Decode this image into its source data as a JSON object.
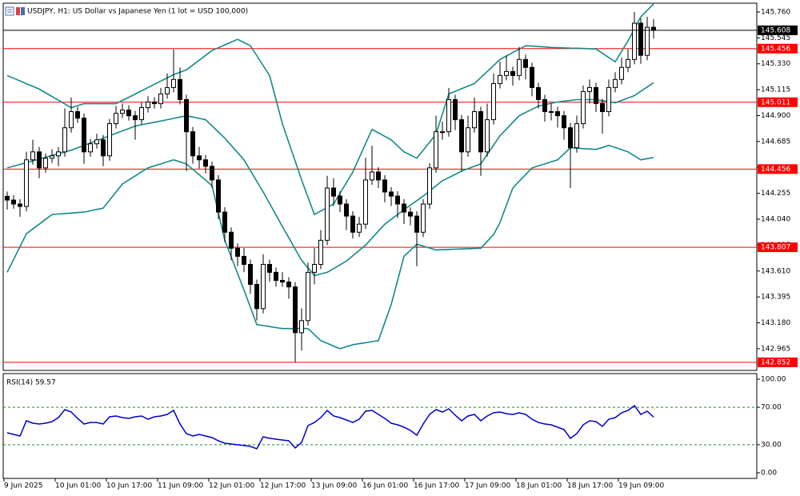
{
  "chart_data": [
    {
      "type": "candlestick",
      "title": "USDJPY, H1:  US Dollar vs Japanese Yen (1 lot = USD 100,000)",
      "categories": [
        "9 Jun 2025",
        null,
        null,
        null,
        null,
        null,
        null,
        null,
        "10 Jun 01:00",
        null,
        null,
        null,
        null,
        null,
        null,
        null,
        "10 Jun 17:00",
        null,
        null,
        null,
        null,
        null,
        null,
        null,
        "11 Jun 09:00",
        null,
        null,
        null,
        null,
        null,
        null,
        null,
        "12 Jun 01:00",
        null,
        null,
        null,
        null,
        null,
        null,
        null,
        "12 Jun 17:00",
        null,
        null,
        null,
        null,
        null,
        null,
        null,
        "13 Jun 09:00",
        null,
        null,
        null,
        null,
        null,
        null,
        null,
        "16 Jun 01:00",
        null,
        null,
        null,
        null,
        null,
        null,
        null,
        "16 Jun 17:00",
        null,
        null,
        null,
        null,
        null,
        null,
        null,
        "17 Jun 09:00",
        null,
        null,
        null,
        null,
        null,
        null,
        null,
        "18 Jun 01:00",
        null,
        null,
        null,
        null,
        null,
        null,
        null,
        "18 Jun 17:00",
        null,
        null,
        null,
        null,
        null,
        null,
        null,
        "19 Jun 09:00",
        null,
        null,
        null,
        null,
        null
      ],
      "open": [
        144.23,
        144.199,
        144.166,
        144.146,
        144.533,
        144.599,
        144.466,
        144.546,
        144.566,
        144.599,
        144.799,
        144.933,
        144.879,
        144.599,
        144.666,
        144.699,
        144.566,
        144.833,
        144.919,
        144.946,
        144.899,
        144.866,
        144.966,
        145.013,
        144.999,
        145.08,
        145.133,
        145.2,
        145.033,
        144.766,
        144.566,
        144.533,
        144.479,
        144.366,
        144.099,
        143.932,
        143.799,
        143.732,
        143.665,
        143.499,
        143.298,
        143.665,
        143.599,
        143.532,
        143.519,
        143.478,
        143.098,
        143.198,
        143.599,
        143.665,
        143.865,
        144.299,
        144.232,
        144.166,
        144.066,
        143.932,
        143.999,
        144.366,
        144.432,
        144.366,
        144.266,
        144.232,
        144.166,
        144.099,
        144.066,
        143.932,
        144.166,
        144.466,
        144.766,
        144.766,
        145.033,
        144.866,
        144.599,
        144.799,
        144.933,
        144.599,
        144.866,
        145.166,
        145.233,
        145.266,
        145.233,
        145.366,
        145.3,
        145.133,
        145.033,
        144.933,
        144.933,
        144.899,
        144.799,
        144.633,
        144.833,
        145.1,
        145.133,
        145.0,
        144.933,
        145.133,
        145.2,
        145.3,
        145.366,
        145.667,
        145.4,
        145.633
      ],
      "high": [
        144.27,
        144.239,
        144.206,
        144.6,
        144.7,
        144.639,
        144.586,
        144.62,
        144.639,
        144.96,
        145.05,
        144.973,
        144.919,
        144.706,
        144.75,
        144.739,
        144.873,
        144.98,
        145.0,
        144.986,
        144.939,
        145.01,
        145.06,
        145.053,
        145.13,
        145.25,
        145.45,
        145.3,
        145.073,
        144.806,
        144.64,
        144.573,
        144.519,
        144.406,
        144.139,
        143.972,
        143.839,
        143.8,
        143.705,
        143.539,
        143.75,
        143.705,
        143.639,
        143.6,
        143.559,
        143.518,
        143.3,
        143.68,
        143.8,
        143.95,
        144.4,
        144.38,
        144.272,
        144.206,
        144.106,
        144.06,
        144.55,
        144.65,
        144.472,
        144.406,
        144.306,
        144.272,
        144.206,
        144.139,
        144.106,
        144.206,
        144.506,
        144.9,
        144.85,
        145.13,
        145.073,
        144.906,
        144.9,
        145.05,
        144.973,
        145.0,
        145.25,
        145.35,
        145.4,
        145.306,
        145.47,
        145.406,
        145.34,
        145.173,
        145.073,
        145.0,
        144.973,
        144.939,
        144.839,
        144.9,
        145.15,
        145.2,
        145.173,
        145.04,
        145.2,
        145.26,
        145.38,
        145.45,
        145.76,
        145.707,
        145.72,
        145.7
      ],
      "low": [
        144.12,
        144.126,
        144.06,
        144.106,
        144.493,
        144.38,
        144.426,
        144.506,
        144.48,
        144.559,
        144.759,
        144.839,
        144.5,
        144.559,
        144.626,
        144.48,
        144.526,
        144.793,
        144.879,
        144.859,
        144.7,
        144.826,
        144.926,
        144.959,
        144.959,
        145.04,
        145.093,
        144.993,
        144.44,
        144.5,
        144.46,
        144.42,
        144.3,
        144.04,
        143.85,
        143.7,
        143.65,
        143.6,
        143.42,
        143.2,
        143.258,
        143.52,
        143.48,
        143.479,
        143.38,
        142.852,
        142.95,
        143.158,
        143.5,
        143.625,
        143.825,
        144.15,
        144.1,
        143.95,
        143.88,
        143.892,
        143.959,
        144.326,
        144.3,
        144.18,
        144.15,
        144.05,
        144.0,
        143.99,
        143.65,
        143.892,
        144.126,
        144.426,
        144.7,
        144.726,
        144.78,
        144.44,
        144.559,
        144.759,
        144.4,
        144.559,
        144.826,
        145.126,
        145.193,
        145.15,
        145.193,
        145.2,
        145.06,
        144.96,
        144.85,
        144.86,
        144.8,
        144.7,
        144.3,
        144.593,
        144.793,
        145.0,
        144.93,
        144.75,
        144.893,
        145.093,
        145.16,
        145.26,
        145.326,
        145.33,
        145.36,
        145.54
      ],
      "close": [
        144.199,
        144.166,
        144.146,
        144.533,
        144.599,
        144.466,
        144.546,
        144.566,
        144.599,
        144.799,
        144.933,
        144.879,
        144.599,
        144.666,
        144.699,
        144.566,
        144.833,
        144.919,
        144.946,
        144.899,
        144.866,
        144.966,
        145.013,
        144.999,
        145.08,
        145.133,
        145.2,
        145.033,
        144.766,
        144.566,
        144.533,
        144.479,
        144.366,
        144.099,
        143.932,
        143.799,
        143.732,
        143.665,
        143.499,
        143.298,
        143.665,
        143.599,
        143.532,
        143.519,
        143.478,
        143.098,
        143.198,
        143.599,
        143.665,
        143.865,
        144.299,
        144.232,
        144.166,
        144.066,
        143.932,
        143.999,
        144.366,
        144.432,
        144.366,
        144.266,
        144.232,
        144.166,
        144.099,
        144.066,
        143.932,
        144.166,
        144.466,
        144.766,
        144.766,
        145.033,
        144.866,
        144.599,
        144.799,
        144.933,
        144.599,
        144.866,
        145.166,
        145.233,
        145.266,
        145.233,
        145.366,
        145.3,
        145.133,
        145.033,
        144.933,
        144.933,
        144.899,
        144.799,
        144.633,
        144.833,
        145.1,
        145.133,
        145.0,
        144.933,
        145.133,
        145.2,
        145.3,
        145.366,
        145.667,
        145.4,
        145.633,
        145.608
      ],
      "up_color": "#ffffff",
      "down_color": "#000000",
      "wick_color": "#000000",
      "bands": {
        "color": "#138a8a",
        "upper": [
          145.233,
          145.21,
          145.188,
          145.165,
          145.143,
          145.12,
          145.089,
          145.058,
          145.028,
          144.997,
          144.966,
          144.983,
          144.999,
          144.999,
          144.999,
          144.999,
          144.999,
          144.999,
          145.026,
          145.052,
          145.079,
          145.106,
          145.133,
          145.16,
          145.187,
          145.213,
          145.24,
          145.26,
          145.28,
          145.32,
          145.36,
          145.4,
          145.44,
          145.463,
          145.487,
          145.51,
          145.533,
          145.507,
          145.48,
          145.398,
          145.315,
          145.233,
          145.033,
          144.833,
          144.677,
          144.522,
          144.366,
          144.223,
          144.079,
          144.108,
          144.137,
          144.166,
          144.255,
          144.343,
          144.432,
          144.55,
          144.668,
          144.786,
          144.757,
          144.728,
          144.699,
          144.649,
          144.599,
          144.573,
          144.546,
          144.613,
          144.679,
          144.746,
          144.913,
          145.08,
          145.102,
          145.123,
          145.145,
          145.166,
          145.216,
          145.266,
          145.316,
          145.366,
          145.395,
          145.423,
          145.452,
          145.48,
          145.477,
          145.473,
          145.47,
          145.466,
          145.464,
          145.462,
          145.46,
          145.459,
          145.457,
          145.455,
          145.453,
          145.417,
          145.382,
          145.346,
          145.433,
          145.52,
          145.62,
          145.72,
          145.774,
          145.827
        ],
        "middle": [
          144.466,
          144.481,
          144.495,
          144.51,
          144.524,
          144.539,
          144.554,
          144.569,
          144.583,
          144.598,
          144.613,
          144.633,
          144.653,
          144.673,
          144.693,
          144.713,
          144.733,
          144.753,
          144.773,
          144.793,
          144.813,
          144.824,
          144.834,
          144.845,
          144.855,
          144.866,
          144.877,
          144.888,
          144.899,
          144.888,
          144.877,
          144.866,
          144.815,
          144.764,
          144.713,
          144.653,
          144.593,
          144.533,
          144.444,
          144.355,
          144.266,
          144.17,
          144.075,
          143.979,
          143.886,
          143.792,
          143.699,
          143.636,
          143.572,
          143.586,
          143.599,
          143.63,
          143.661,
          143.692,
          143.736,
          143.781,
          143.825,
          143.883,
          143.941,
          143.999,
          144.039,
          144.079,
          144.119,
          144.157,
          144.194,
          144.232,
          144.274,
          144.317,
          144.359,
          144.386,
          144.412,
          144.439,
          144.459,
          144.479,
          144.499,
          144.577,
          144.655,
          144.733,
          144.788,
          144.844,
          144.899,
          144.926,
          144.952,
          144.979,
          144.99,
          145.002,
          145.013,
          145.02,
          145.026,
          145.033,
          145.033,
          145.033,
          145.033,
          145.024,
          145.015,
          145.006,
          145.026,
          145.046,
          145.066,
          145.102,
          145.137,
          145.173
        ],
        "lower": [
          143.599,
          143.706,
          143.812,
          143.919,
          143.959,
          143.999,
          144.039,
          144.079,
          144.083,
          144.087,
          144.091,
          144.095,
          144.099,
          144.11,
          144.121,
          144.132,
          144.199,
          144.265,
          144.332,
          144.366,
          144.399,
          144.433,
          144.466,
          144.483,
          144.499,
          144.516,
          144.533,
          144.516,
          144.499,
          144.454,
          144.409,
          144.364,
          144.319,
          144.092,
          143.865,
          143.727,
          143.59,
          143.452,
          143.309,
          143.165,
          143.157,
          143.149,
          143.14,
          143.132,
          143.132,
          143.132,
          143.132,
          143.132,
          143.082,
          143.032,
          143.01,
          142.987,
          142.965,
          142.982,
          142.998,
          143.007,
          143.015,
          143.024,
          143.032,
          143.182,
          143.332,
          143.532,
          143.732,
          143.782,
          143.832,
          143.816,
          143.801,
          143.785,
          143.787,
          143.789,
          143.791,
          143.793,
          143.795,
          143.797,
          143.799,
          143.856,
          143.912,
          144.012,
          144.156,
          144.299,
          144.355,
          144.41,
          144.466,
          144.483,
          144.499,
          144.516,
          144.533,
          144.583,
          144.633,
          144.63,
          144.626,
          144.623,
          144.619,
          144.636,
          144.653,
          144.635,
          144.617,
          144.599,
          144.566,
          144.533,
          144.543,
          144.553
        ]
      },
      "levels": [
        145.456,
        145.011,
        144.456,
        143.807,
        142.852
      ],
      "level_color": "#ff0000",
      "last_price_color": "#000000",
      "ylim": [
        142.785,
        145.833
      ],
      "yticks": [
        {
          "value": 145.76,
          "label": "145.760"
        },
        145.545,
        {
          "value": 145.33,
          "label": "145.330"
        },
        145.115,
        {
          "value": 144.9,
          "label": "144.900"
        },
        144.685,
        144.47,
        144.255,
        {
          "value": 144.04,
          "label": "144.040"
        },
        143.825,
        {
          "value": 143.61,
          "label": "143.610"
        },
        143.395,
        {
          "value": 143.18,
          "label": "143.180"
        },
        142.965
      ]
    },
    {
      "type": "line",
      "title": "RSI(14) 59.57",
      "color": "#0000cd",
      "values": [
        42.7,
        41.0,
        39.3,
        55.6,
        53.0,
        52.1,
        53.0,
        54.7,
        59.0,
        67.5,
        65.0,
        58.1,
        52.1,
        53.8,
        53.8,
        52.1,
        59.8,
        60.7,
        59.0,
        58.1,
        59.8,
        60.7,
        57.3,
        59.8,
        60.7,
        62.4,
        66.7,
        52.1,
        41.9,
        39.3,
        41.0,
        39.3,
        37.6,
        34.2,
        31.6,
        30.8,
        29.9,
        29.1,
        28.2,
        25.6,
        38.5,
        36.8,
        35.9,
        35.0,
        34.2,
        26.5,
        32.5,
        50.4,
        53.8,
        59.0,
        66.7,
        60.7,
        59.0,
        56.4,
        53.8,
        57.3,
        65.8,
        66.7,
        62.4,
        58.1,
        53.0,
        51.3,
        48.7,
        45.3,
        40.2,
        52.1,
        62.4,
        67.5,
        65.0,
        68.4,
        61.5,
        55.6,
        60.7,
        62.4,
        55.6,
        60.7,
        64.1,
        65.0,
        63.2,
        62.4,
        64.1,
        62.4,
        57.3,
        53.8,
        52.1,
        51.3,
        48.7,
        46.2,
        36.8,
        41.9,
        51.3,
        55.6,
        54.7,
        49.6,
        57.3,
        59.0,
        64.1,
        66.7,
        71.8,
        62.4,
        65.8,
        59.57
      ],
      "levels": [
        70,
        30
      ],
      "level_color": "#1a8a3a",
      "ylim": [
        -6,
        106
      ],
      "yticks": [
        {
          "value": 100,
          "label": "100.00"
        },
        {
          "value": 70,
          "label": "70.00"
        },
        {
          "value": 30,
          "label": "30.00"
        },
        {
          "value": 0,
          "label": "0.00"
        }
      ]
    }
  ]
}
